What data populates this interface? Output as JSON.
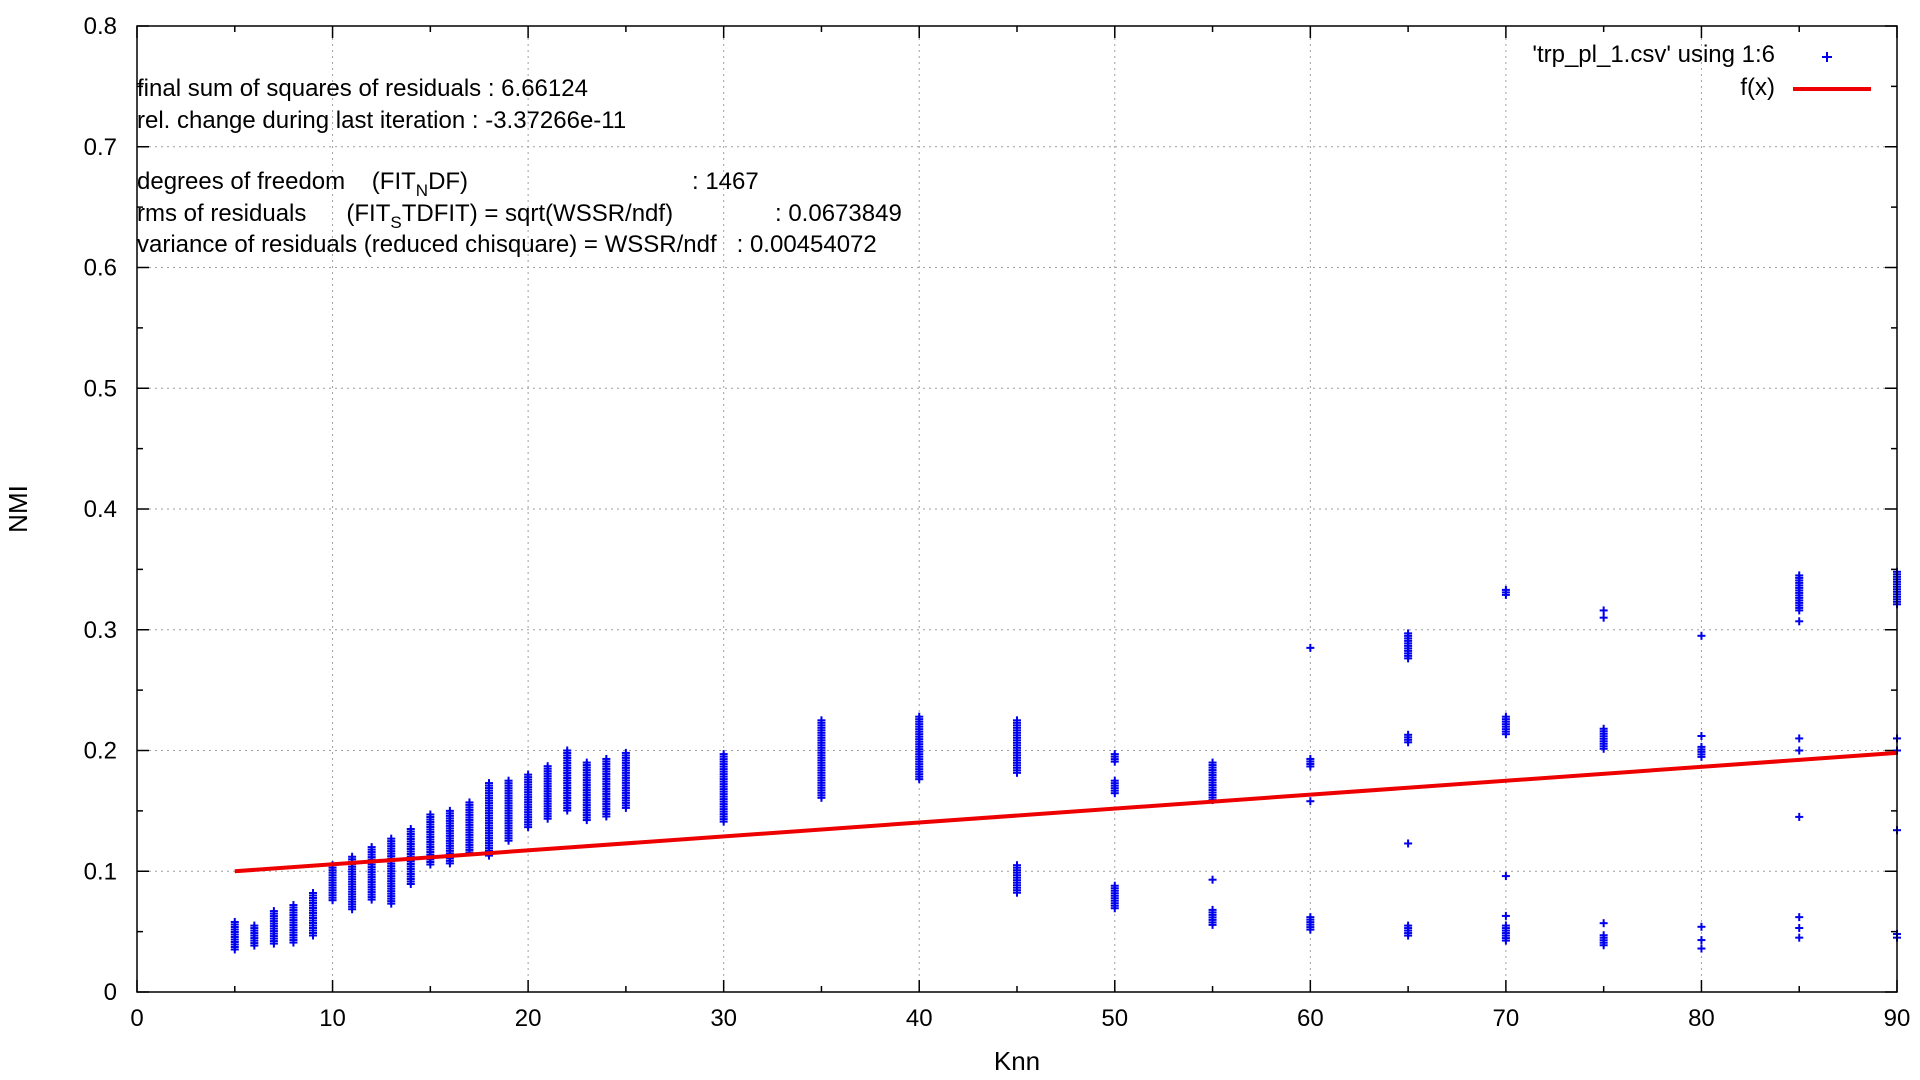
{
  "chart_data": {
    "type": "scatter",
    "xlabel": "Knn",
    "ylabel": "NMI",
    "xlim": [
      0,
      90
    ],
    "ylim": [
      0,
      0.8
    ],
    "xticks": [
      "0",
      "10",
      "20",
      "30",
      "40",
      "50",
      "60",
      "70",
      "80",
      "90"
    ],
    "yticks": [
      "0",
      "0.1",
      "0.2",
      "0.3",
      "0.4",
      "0.5",
      "0.6",
      "0.7",
      "0.8"
    ],
    "grid": true,
    "legend_position": "top-right",
    "fit_info": [
      {
        "text": "final sum of squares of residuals : 6.66124"
      },
      {
        "text": "rel. change during last iteration : -3.37266e-11"
      },
      {
        "prefix": "degrees of freedom    (FIT",
        "sub": "N",
        "suffix": "DF)",
        "value": ": 1467"
      },
      {
        "prefix": "rms of residuals      (FIT",
        "sub": "S",
        "suffix": "TDFIT) = sqrt(WSSR/ndf)",
        "value": ": 0.0673849"
      },
      {
        "text": "variance of residuals (reduced chisquare) = WSSR/ndf   : 0.00454072"
      }
    ],
    "series": [
      {
        "name": "'trp_pl_1.csv' using 1:6",
        "kind": "points",
        "color": "#0000ee",
        "clusters": [
          {
            "x": 5,
            "ranges": [
              [
                0.035,
                0.058
              ]
            ]
          },
          {
            "x": 6,
            "ranges": [
              [
                0.037,
                0.055
              ]
            ]
          },
          {
            "x": 7,
            "ranges": [
              [
                0.04,
                0.067
              ]
            ]
          },
          {
            "x": 8,
            "ranges": [
              [
                0.04,
                0.072
              ]
            ]
          },
          {
            "x": 9,
            "ranges": [
              [
                0.045,
                0.082
              ]
            ]
          },
          {
            "x": 10,
            "ranges": [
              [
                0.075,
                0.105
              ]
            ]
          },
          {
            "x": 11,
            "ranges": [
              [
                0.068,
                0.112
              ]
            ]
          },
          {
            "x": 12,
            "ranges": [
              [
                0.075,
                0.12
              ]
            ]
          },
          {
            "x": 13,
            "ranges": [
              [
                0.073,
                0.127
              ]
            ]
          },
          {
            "x": 14,
            "ranges": [
              [
                0.088,
                0.135
              ]
            ]
          },
          {
            "x": 15,
            "ranges": [
              [
                0.105,
                0.147
              ]
            ]
          },
          {
            "x": 16,
            "ranges": [
              [
                0.105,
                0.15
              ]
            ]
          },
          {
            "x": 17,
            "ranges": [
              [
                0.115,
                0.157
              ]
            ]
          },
          {
            "x": 18,
            "ranges": [
              [
                0.112,
                0.173
              ]
            ]
          },
          {
            "x": 19,
            "ranges": [
              [
                0.125,
                0.175
              ]
            ]
          },
          {
            "x": 20,
            "ranges": [
              [
                0.135,
                0.18
              ]
            ]
          },
          {
            "x": 21,
            "ranges": [
              [
                0.142,
                0.187
              ]
            ]
          },
          {
            "x": 22,
            "ranges": [
              [
                0.15,
                0.2
              ]
            ]
          },
          {
            "x": 23,
            "ranges": [
              [
                0.142,
                0.19
              ]
            ]
          },
          {
            "x": 24,
            "ranges": [
              [
                0.145,
                0.193
              ]
            ]
          },
          {
            "x": 25,
            "ranges": [
              [
                0.152,
                0.198
              ]
            ]
          },
          {
            "x": 30,
            "ranges": [
              [
                0.14,
                0.197
              ]
            ]
          },
          {
            "x": 35,
            "ranges": [
              [
                0.16,
                0.225
              ]
            ]
          },
          {
            "x": 40,
            "ranges": [
              [
                0.175,
                0.228
              ]
            ]
          },
          {
            "x": 45,
            "ranges": [
              [
                0.082,
                0.105
              ],
              [
                0.18,
                0.225
              ]
            ]
          },
          {
            "x": 50,
            "ranges": [
              [
                0.068,
                0.088
              ],
              [
                0.163,
                0.175
              ],
              [
                0.19,
                0.197
              ]
            ]
          },
          {
            "x": 55,
            "ranges": [
              [
                0.055,
                0.068
              ],
              [
                0.158,
                0.19
              ]
            ],
            "extra": [
              0.093
            ]
          },
          {
            "x": 60,
            "ranges": [
              [
                0.05,
                0.062
              ],
              [
                0.185,
                0.193
              ]
            ],
            "extra": [
              0.158,
              0.285
            ]
          },
          {
            "x": 65,
            "ranges": [
              [
                0.045,
                0.055
              ],
              [
                0.205,
                0.213
              ],
              [
                0.275,
                0.297
              ]
            ],
            "extra": [
              0.123
            ]
          },
          {
            "x": 70,
            "ranges": [
              [
                0.042,
                0.055
              ],
              [
                0.212,
                0.228
              ],
              [
                0.327,
                0.333
              ]
            ],
            "extra": [
              0.063,
              0.096
            ]
          },
          {
            "x": 75,
            "ranges": [
              [
                0.038,
                0.047
              ],
              [
                0.2,
                0.218
              ]
            ],
            "extra": [
              0.057,
              0.31,
              0.316
            ]
          },
          {
            "x": 80,
            "ranges": [
              [
                0.193,
                0.203
              ]
            ],
            "extra": [
              0.036,
              0.043,
              0.054,
              0.212,
              0.295
            ]
          },
          {
            "x": 85,
            "ranges": [
              [
                0.315,
                0.345
              ]
            ],
            "extra": [
              0.045,
              0.053,
              0.062,
              0.145,
              0.2,
              0.21,
              0.307
            ]
          },
          {
            "x": 90,
            "ranges": [
              [
                0.32,
                0.348
              ]
            ],
            "extra": [
              0.045,
              0.048,
              0.134,
              0.2,
              0.21
            ]
          }
        ]
      },
      {
        "name": "f(x)",
        "kind": "line",
        "color": "#ee0000",
        "x": [
          5,
          90
        ],
        "y": [
          0.1,
          0.198
        ]
      }
    ]
  }
}
